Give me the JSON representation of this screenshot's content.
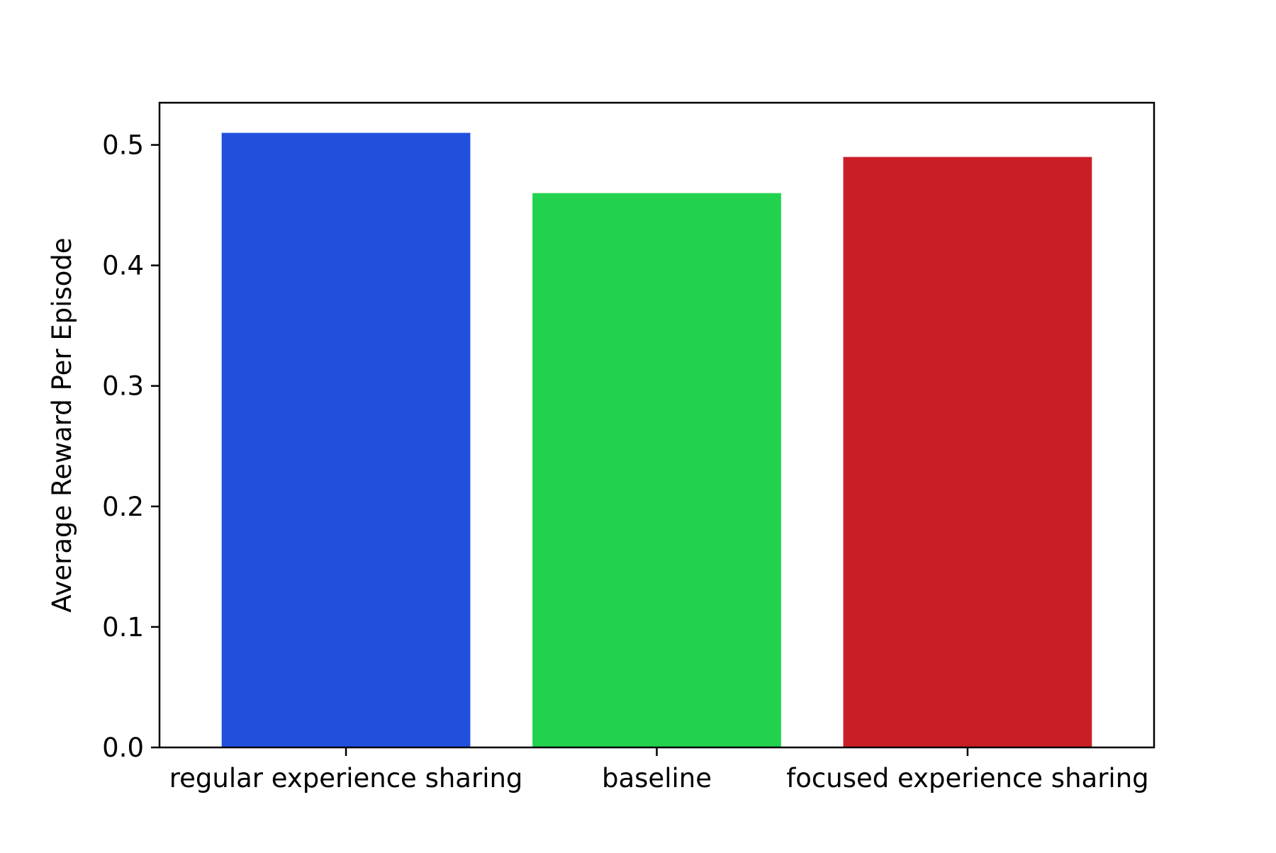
{
  "chart_data": {
    "type": "bar",
    "title": "",
    "xlabel": "",
    "ylabel": "Average Reward Per Episode",
    "categories": [
      "regular experience sharing",
      "baseline",
      "focused experience sharing"
    ],
    "values": [
      0.51,
      0.46,
      0.49
    ],
    "colors": [
      "#2150de",
      "#22d24e",
      "#ca1e27"
    ],
    "ylim": [
      0,
      0.535
    ],
    "yticks": [
      0.0,
      0.1,
      0.2,
      0.3,
      0.4,
      0.5
    ],
    "ytick_labels": [
      "0.0",
      "0.1",
      "0.2",
      "0.3",
      "0.4",
      "0.5"
    ],
    "grid": false,
    "legend": "none"
  }
}
